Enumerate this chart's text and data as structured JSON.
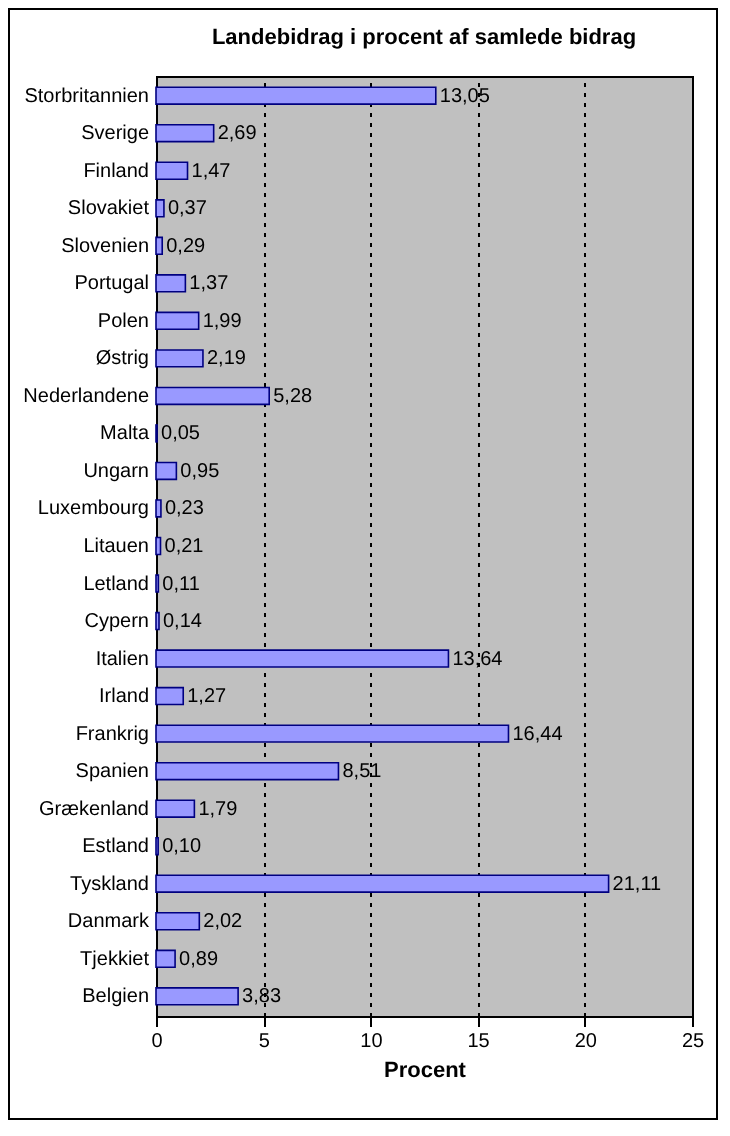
{
  "chart_data": {
    "type": "bar",
    "orientation": "horizontal",
    "title": "Landebidrag i procent af samlede bidrag",
    "xlabel": "Procent",
    "categories": [
      "Storbritannien",
      "Sverige",
      "Finland",
      "Slovakiet",
      "Slovenien",
      "Portugal",
      "Polen",
      "Østrig",
      "Nederlandene",
      "Malta",
      "Ungarn",
      "Luxembourg",
      "Litauen",
      "Letland",
      "Cypern",
      "Italien",
      "Irland",
      "Frankrig",
      "Spanien",
      "Grækenland",
      "Estland",
      "Tyskland",
      "Danmark",
      "Tjekkiet",
      "Belgien"
    ],
    "values": [
      13.05,
      2.69,
      1.47,
      0.37,
      0.29,
      1.37,
      1.99,
      2.19,
      5.28,
      0.05,
      0.95,
      0.23,
      0.21,
      0.11,
      0.14,
      13.64,
      1.27,
      16.44,
      8.51,
      1.79,
      0.1,
      21.11,
      2.02,
      0.89,
      3.83
    ],
    "value_labels": [
      "13,05",
      "2,69",
      "1,47",
      "0,37",
      "0,29",
      "1,37",
      "1,99",
      "2,19",
      "5,28",
      "0,05",
      "0,95",
      "0,23",
      "0,21",
      "0,11",
      "0,14",
      "13,64",
      "1,27",
      "16,44",
      "8,51",
      "1,79",
      "0,10",
      "21,11",
      "2,02",
      "0,89",
      "3,83"
    ],
    "color": "#9999ff",
    "xlim": [
      0,
      25
    ],
    "xticks": [
      0,
      5,
      10,
      15,
      20,
      25
    ],
    "grid": "x"
  }
}
